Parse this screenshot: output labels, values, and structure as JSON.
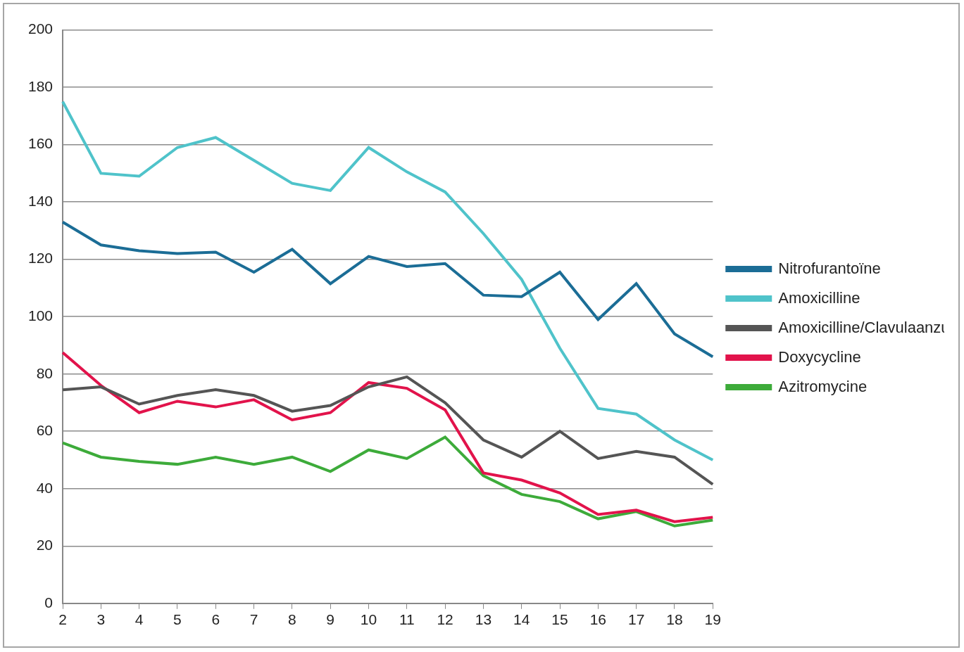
{
  "chart_data": {
    "type": "line",
    "categories": [
      "2",
      "3",
      "4",
      "5",
      "6",
      "7",
      "8",
      "9",
      "10",
      "11",
      "12",
      "13",
      "14",
      "15",
      "16",
      "17",
      "18",
      "19"
    ],
    "series": [
      {
        "name": "Nitrofurantoïne",
        "color": "#1b6d96",
        "values": [
          133,
          125,
          123,
          122,
          122.5,
          115.5,
          123.5,
          111.5,
          121,
          117.5,
          118.5,
          107.5,
          107,
          115.5,
          99,
          111.5,
          94,
          86
        ]
      },
      {
        "name": "Amoxicilline",
        "color": "#4fc3ca",
        "values": [
          175,
          150,
          149,
          159,
          162.5,
          154.5,
          146.5,
          144,
          159,
          150.5,
          143.5,
          129,
          113,
          89,
          68,
          66,
          57,
          50
        ]
      },
      {
        "name": "Amoxicilline/Clavulaanzuur",
        "color": "#555555",
        "values": [
          74.5,
          75.5,
          69.5,
          72.5,
          74.5,
          72.5,
          67,
          69,
          75.5,
          79,
          70,
          57,
          51,
          60,
          50.5,
          53,
          51,
          41.5
        ]
      },
      {
        "name": "Doxycycline",
        "color": "#e2134b",
        "values": [
          87.5,
          76,
          66.5,
          70.5,
          68.5,
          71,
          64,
          66.5,
          77,
          75,
          67.5,
          45.5,
          43,
          38.5,
          31,
          32.5,
          28.5,
          30
        ]
      },
      {
        "name": "Azitromycine",
        "color": "#3dab3a",
        "values": [
          56,
          51,
          49.5,
          48.5,
          51,
          48.5,
          51,
          46,
          53.5,
          50.5,
          58,
          44.5,
          38,
          35.5,
          29.5,
          32,
          27,
          29
        ]
      }
    ],
    "ylim": [
      0,
      200
    ],
    "yticks": [
      0,
      20,
      40,
      60,
      80,
      100,
      120,
      140,
      160,
      180,
      200
    ],
    "grid": true,
    "legend": "right"
  }
}
